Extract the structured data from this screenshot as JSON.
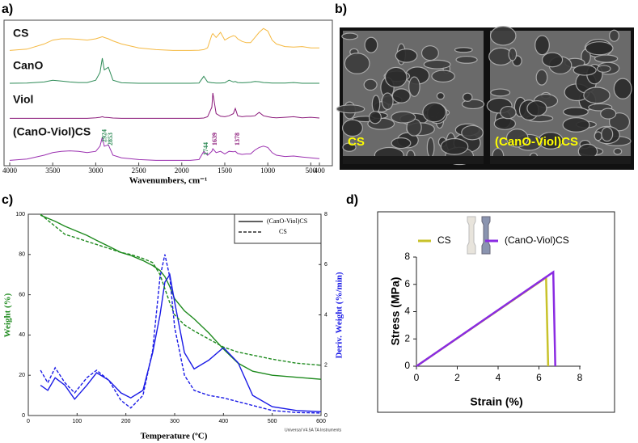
{
  "chart_data": [
    {
      "type": "spectra",
      "panel_label": "a)",
      "xlabel": "Wavenumbers, cm⁻¹",
      "xlim": [
        4000,
        400
      ],
      "xticks": [
        4000,
        3500,
        3000,
        2500,
        2000,
        1500,
        1000,
        500,
        400
      ],
      "x": [
        4000,
        3800,
        3600,
        3500,
        3400,
        3300,
        3200,
        3100,
        3000,
        2950,
        2924,
        2900,
        2853,
        2800,
        2700,
        2500,
        2300,
        2100,
        1900,
        1800,
        1744,
        1700,
        1650,
        1639,
        1600,
        1550,
        1500,
        1450,
        1400,
        1378,
        1350,
        1300,
        1250,
        1200,
        1150,
        1100,
        1050,
        1000,
        950,
        900,
        800,
        700,
        600,
        500,
        400
      ],
      "series": [
        {
          "name": "CS",
          "color": "#f5b942",
          "values": [
            0.05,
            0.1,
            0.3,
            0.45,
            0.5,
            0.5,
            0.48,
            0.45,
            0.5,
            0.55,
            0.58,
            0.55,
            0.5,
            0.42,
            0.3,
            0.15,
            0.08,
            0.05,
            0.05,
            0.06,
            0.08,
            0.15,
            0.65,
            0.7,
            0.55,
            0.75,
            0.45,
            0.55,
            0.62,
            0.6,
            0.5,
            0.4,
            0.35,
            0.35,
            0.55,
            0.75,
            0.9,
            0.8,
            0.45,
            0.3,
            0.2,
            0.18,
            0.2,
            0.15,
            0.15
          ]
        },
        {
          "name": "CanO",
          "color": "#2e8b57",
          "values": [
            0.03,
            0.04,
            0.08,
            0.15,
            0.12,
            0.08,
            0.06,
            0.06,
            0.15,
            0.45,
            1.0,
            0.55,
            0.65,
            0.15,
            0.05,
            0.03,
            0.03,
            0.03,
            0.03,
            0.04,
            0.3,
            0.08,
            0.05,
            0.05,
            0.04,
            0.04,
            0.05,
            0.15,
            0.08,
            0.1,
            0.06,
            0.05,
            0.06,
            0.07,
            0.1,
            0.09,
            0.06,
            0.05,
            0.04,
            0.04,
            0.04,
            0.06,
            0.03,
            0.03,
            0.03
          ]
        },
        {
          "name": "Viol",
          "color": "#8b1a7a",
          "values": [
            0.02,
            0.02,
            0.02,
            0.02,
            0.02,
            0.02,
            0.02,
            0.02,
            0.04,
            0.06,
            0.08,
            0.06,
            0.05,
            0.03,
            0.02,
            0.02,
            0.02,
            0.02,
            0.02,
            0.02,
            0.03,
            0.08,
            0.45,
            1.0,
            0.2,
            0.1,
            0.08,
            0.12,
            0.2,
            0.4,
            0.12,
            0.08,
            0.1,
            0.1,
            0.12,
            0.25,
            0.12,
            0.08,
            0.05,
            0.04,
            0.06,
            0.08,
            0.04,
            0.06,
            0.03
          ]
        },
        {
          "name": "(CanO-Viol)CS",
          "color": "#9b30b0",
          "values": [
            0.05,
            0.1,
            0.25,
            0.35,
            0.4,
            0.42,
            0.4,
            0.35,
            0.4,
            0.6,
            0.95,
            0.6,
            0.65,
            0.25,
            0.15,
            0.08,
            0.05,
            0.05,
            0.05,
            0.08,
            0.4,
            0.25,
            0.4,
            0.5,
            0.35,
            0.4,
            0.3,
            0.4,
            0.38,
            0.4,
            0.32,
            0.28,
            0.3,
            0.3,
            0.45,
            0.55,
            0.6,
            0.55,
            0.35,
            0.25,
            0.2,
            0.22,
            0.18,
            0.15,
            0.12
          ]
        }
      ],
      "annotations": [
        {
          "x": 2924,
          "color": "#2e8b57"
        },
        {
          "x": 2853,
          "color": "#2e8b57"
        },
        {
          "x": 1744,
          "color": "#2e8b57"
        },
        {
          "x": 1639,
          "color": "#8b1a7a"
        },
        {
          "x": 1378,
          "color": "#8b1a7a"
        }
      ]
    },
    {
      "type": "tga",
      "panel_label": "c)",
      "xlabel": "Temperature (ºC)",
      "ylabel": "Weight (%)",
      "y2label": "Deriv. Weight (%/min)",
      "footnote": "Universal V4.5A TA Instruments",
      "xlim": [
        0,
        600
      ],
      "xticks": [
        0,
        100,
        200,
        300,
        400,
        500,
        600
      ],
      "ylim": [
        0,
        100
      ],
      "yticks": [
        0,
        20,
        40,
        60,
        80,
        100
      ],
      "y2lim": [
        0,
        8
      ],
      "y2ticks": [
        0,
        2,
        4,
        6,
        8
      ],
      "weight_color": "#1e8a1e",
      "deriv_color": "#1a1ae6",
      "x": [
        25,
        40,
        55,
        75,
        95,
        120,
        140,
        165,
        190,
        210,
        235,
        255,
        270,
        280,
        290,
        300,
        320,
        340,
        370,
        400,
        430,
        460,
        500,
        550,
        600
      ],
      "series": [
        {
          "name": "(CanO-Viol)CS",
          "dash": false,
          "weight": [
            99.5,
            98,
            96.5,
            94,
            92,
            89.5,
            87,
            84,
            81,
            79.5,
            77,
            74.5,
            72,
            69,
            64,
            58,
            52,
            48,
            41,
            33,
            26,
            22,
            20,
            19,
            18
          ],
          "deriv": [
            1.2,
            1.0,
            1.5,
            1.2,
            0.65,
            1.2,
            1.7,
            1.4,
            0.9,
            0.7,
            1.0,
            2.5,
            4.0,
            5.3,
            5.6,
            4.5,
            2.5,
            1.85,
            2.2,
            2.7,
            2.1,
            0.8,
            0.35,
            0.2,
            0.15
          ]
        },
        {
          "name": "CS",
          "dash": true,
          "weight": [
            100,
            97,
            94,
            90,
            88.5,
            86.5,
            85,
            83,
            81,
            80,
            78,
            76,
            70,
            63,
            56,
            50,
            45,
            42,
            38,
            34,
            31.5,
            30,
            28,
            26,
            25
          ],
          "deriv": [
            1.8,
            1.3,
            1.9,
            1.3,
            0.9,
            1.5,
            1.8,
            1.4,
            0.6,
            0.3,
            0.8,
            2.6,
            5.5,
            6.4,
            5.5,
            3.5,
            1.6,
            1.0,
            0.8,
            0.7,
            0.55,
            0.4,
            0.2,
            0.12,
            0.1
          ]
        }
      ]
    },
    {
      "type": "line",
      "panel_label": "d)",
      "xlabel": "Strain (%)",
      "ylabel": "Stress (MPa)",
      "xlim": [
        0,
        8
      ],
      "xticks": [
        0,
        2,
        4,
        6,
        8
      ],
      "ylim": [
        0,
        8
      ],
      "yticks": [
        0,
        2,
        4,
        6,
        8
      ],
      "legend": "top",
      "series": [
        {
          "name": "CS",
          "color": "#c8c22a",
          "x": [
            0,
            6.35,
            6.45
          ],
          "values": [
            0,
            6.5,
            0
          ]
        },
        {
          "name": "(CanO-Viol)CS",
          "color": "#8a2be2",
          "x": [
            0,
            6.7,
            6.8
          ],
          "values": [
            0,
            6.9,
            0
          ]
        }
      ]
    }
  ],
  "sem_images": {
    "panel_label": "b)",
    "label_color": "#ffff00",
    "images": [
      {
        "label": "CS"
      },
      {
        "label": "(CanO-Viol)CS"
      }
    ]
  }
}
